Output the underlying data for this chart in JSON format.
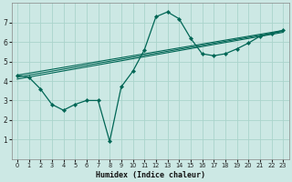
{
  "title": "",
  "xlabel": "Humidex (Indice chaleur)",
  "background_color": "#cce8e4",
  "grid_color": "#aad4cc",
  "line_color": "#006655",
  "xlim": [
    -0.5,
    23.5
  ],
  "ylim": [
    0,
    8
  ],
  "xticks": [
    0,
    1,
    2,
    3,
    4,
    5,
    6,
    7,
    8,
    9,
    10,
    11,
    12,
    13,
    14,
    15,
    16,
    17,
    18,
    19,
    20,
    21,
    22,
    23
  ],
  "yticks": [
    1,
    2,
    3,
    4,
    5,
    6,
    7
  ],
  "series_main": {
    "x": [
      0,
      1,
      2,
      3,
      4,
      5,
      6,
      7,
      8,
      9,
      10,
      11,
      12,
      13,
      14,
      15,
      16,
      17,
      18,
      19,
      20,
      21,
      22,
      23
    ],
    "y": [
      4.3,
      4.2,
      3.6,
      2.8,
      2.5,
      2.8,
      3.0,
      3.0,
      0.9,
      3.7,
      4.5,
      5.6,
      7.3,
      7.55,
      7.2,
      6.2,
      5.4,
      5.3,
      5.4,
      5.65,
      5.95,
      6.3,
      6.45,
      6.6
    ]
  },
  "series_reg1": {
    "x": [
      0,
      23
    ],
    "y": [
      4.3,
      6.6
    ]
  },
  "series_reg2": {
    "x": [
      0,
      23
    ],
    "y": [
      4.2,
      6.55
    ]
  },
  "series_reg3": {
    "x": [
      0,
      23
    ],
    "y": [
      4.1,
      6.5
    ]
  }
}
